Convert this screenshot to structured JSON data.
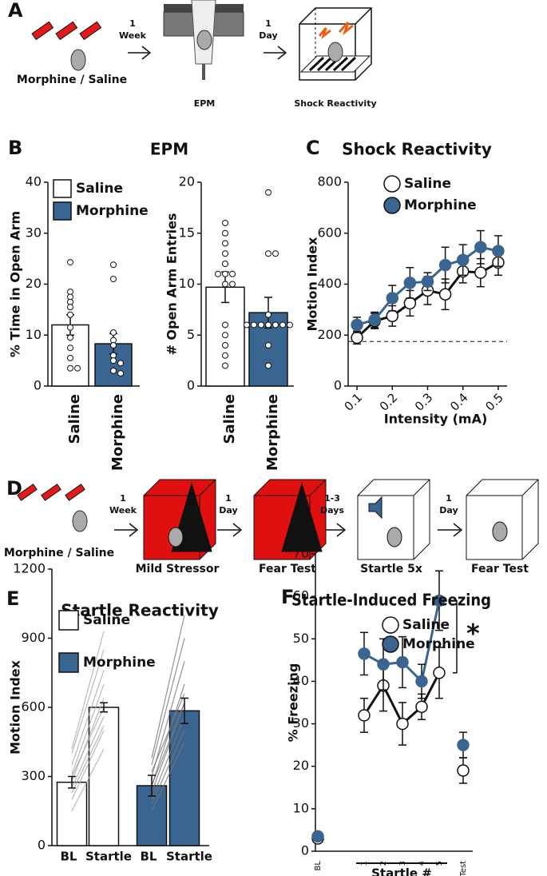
{
  "panel_labels": [
    "A",
    "B",
    "C",
    "D",
    "E",
    "F"
  ],
  "schematic_a": {
    "subject": "Morphine / Saline",
    "arrows": [
      {
        "lines": [
          "1",
          "Week"
        ]
      },
      {
        "lines": [
          "1",
          "Day"
        ]
      }
    ],
    "stages": [
      "EPM",
      "Shock Reactivity"
    ]
  },
  "schematic_d": {
    "subject": "Morphine / Saline",
    "arrows": [
      {
        "lines": [
          "1",
          "Week"
        ]
      },
      {
        "lines": [
          "1",
          "Day"
        ]
      },
      {
        "lines": [
          "1-3",
          "Days"
        ]
      },
      {
        "lines": [
          "1",
          "Day"
        ]
      }
    ],
    "stages": [
      "Mild Stressor",
      "Fear Test",
      "Startle 5x",
      "Fear Test"
    ]
  },
  "chart_data": [
    {
      "type": "bar",
      "title": "EPM",
      "categories": [
        "Saline",
        "Morphine"
      ],
      "values": [
        12,
        8.3
      ],
      "errors": [
        2,
        2
      ],
      "colors": [
        "#ffffff",
        "#3a6591"
      ],
      "legend": true,
      "points": [
        [
          24.3,
          18.5,
          17.5,
          16.5,
          15.5,
          14,
          11.5,
          9.5,
          7.5,
          5.5,
          3.5,
          3.5
        ],
        [
          23.8,
          21,
          10.5,
          9,
          8,
          6,
          5,
          4.5,
          3,
          2.5
        ]
      ],
      "ylabel": "% Time in Open Arm",
      "ylim": [
        0,
        40
      ],
      "yticks": [
        0,
        10,
        20,
        30,
        40
      ]
    },
    {
      "type": "bar",
      "categories": [
        "Saline",
        "Morphine"
      ],
      "values": [
        9.7,
        7.2
      ],
      "errors": [
        1.5,
        1.5
      ],
      "colors": [
        "#ffffff",
        "#3a6591"
      ],
      "legend": false,
      "points": [
        [
          16,
          15,
          14,
          13,
          12,
          11,
          11,
          11,
          10,
          10,
          6,
          5,
          4,
          3,
          2
        ],
        [
          19,
          13,
          13,
          7,
          6,
          6,
          6,
          6,
          6,
          6,
          6,
          4,
          2
        ]
      ],
      "ylabel": "# Open Arm Entries",
      "ylim": [
        0,
        20
      ],
      "yticks": [
        0,
        5,
        10,
        15,
        20
      ]
    },
    {
      "type": "line",
      "title": "Shock Reactivity",
      "x": [
        0.1,
        0.15,
        0.2,
        0.25,
        0.3,
        0.35,
        0.4,
        0.45,
        0.5
      ],
      "series": [
        {
          "name": "Saline",
          "color": "#ffffff",
          "values": [
            190,
            255,
            275,
            325,
            375,
            360,
            450,
            445,
            485
          ],
          "errors": [
            25,
            30,
            40,
            50,
            55,
            60,
            45,
            55,
            50
          ]
        },
        {
          "name": "Morphine",
          "color": "#3a6591",
          "values": [
            240,
            260,
            345,
            405,
            410,
            475,
            495,
            545,
            530
          ],
          "errors": [
            30,
            30,
            50,
            60,
            35,
            70,
            60,
            65,
            60
          ]
        }
      ],
      "xlabel": "Intensity (mA)",
      "ylabel": "Motion Index",
      "xlim": [
        0.075,
        0.525
      ],
      "xticks": [
        0.1,
        0.2,
        0.3,
        0.4,
        0.5
      ],
      "ylim": [
        0,
        800
      ],
      "yticks": [
        0,
        200,
        400,
        600,
        800
      ],
      "reference_line": 175
    },
    {
      "type": "paired_bar",
      "title": "Startle Reactivity",
      "categories": [
        "BL",
        "Startle"
      ],
      "series": [
        {
          "name": "Saline",
          "color": "#ffffff",
          "values": [
            275,
            600
          ],
          "errors": [
            25,
            20
          ],
          "pairs": [
            [
              150,
              420
            ],
            [
              200,
              500
            ],
            [
              250,
              560
            ],
            [
              280,
              640
            ],
            [
              310,
              700
            ],
            [
              350,
              760
            ],
            [
              400,
              850
            ],
            [
              420,
              930
            ],
            [
              300,
              600
            ],
            [
              230,
              520
            ]
          ]
        },
        {
          "name": "Morphine",
          "color": "#3a6591",
          "values": [
            260,
            585
          ],
          "errors": [
            45,
            55
          ],
          "pairs": [
            [
              150,
              450
            ],
            [
              200,
              560
            ],
            [
              230,
              620
            ],
            [
              260,
              700
            ],
            [
              300,
              800
            ],
            [
              350,
              900
            ],
            [
              380,
              1000
            ],
            [
              260,
              620
            ],
            [
              180,
              500
            ],
            [
              320,
              660
            ]
          ]
        }
      ],
      "ylabel": "Motion Index",
      "ylim": [
        0,
        1200
      ],
      "yticks": [
        0,
        300,
        600,
        900,
        1200
      ]
    },
    {
      "type": "line",
      "title": "Startle-Induced Freezing",
      "categories": [
        "BL",
        "1",
        "2",
        "3",
        "4",
        "5",
        "Test"
      ],
      "series": [
        {
          "name": "Saline",
          "color": "#ffffff",
          "values": [
            3,
            32,
            39,
            30,
            34,
            42,
            19
          ],
          "errors": [
            1,
            4,
            6,
            5,
            3,
            6,
            3
          ]
        },
        {
          "name": "Morphine",
          "color": "#3a6591",
          "values": [
            3.5,
            46.5,
            44,
            44.5,
            40,
            59,
            25
          ],
          "errors": [
            1,
            5,
            6,
            6,
            4,
            7,
            3
          ]
        }
      ],
      "x_group": {
        "label": "Startle #",
        "start": 1,
        "end": 5
      },
      "ylabel": "% Freezing",
      "ylim": [
        0,
        70
      ],
      "yticks": [
        0,
        10,
        20,
        30,
        40,
        50,
        60,
        70
      ],
      "annotation": "*"
    }
  ]
}
